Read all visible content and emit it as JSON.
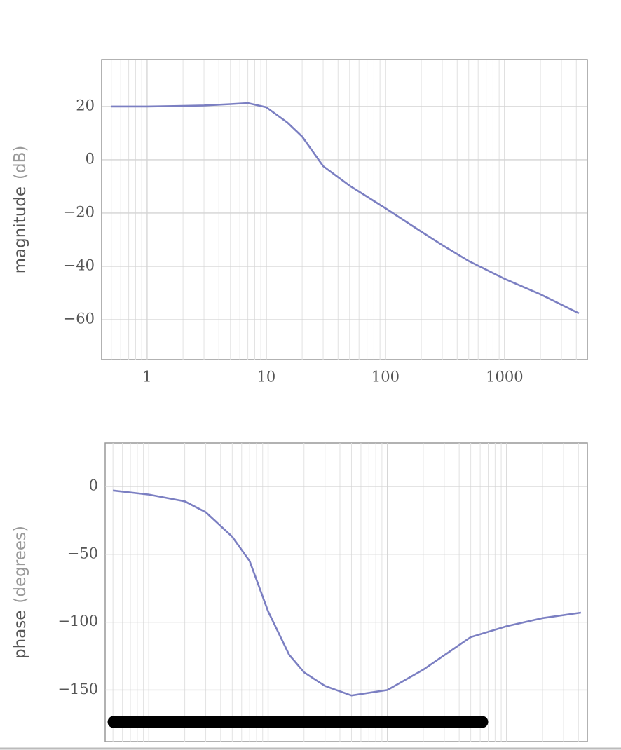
{
  "chart_data": [
    {
      "type": "line",
      "log_x": true,
      "grid": true,
      "ylabel": "magnitude",
      "ylabel_units": "(dB)",
      "xlim": [
        0.415,
        4950
      ],
      "ylim": [
        -75,
        37.6
      ],
      "xticks": [
        1,
        10,
        100,
        1000
      ],
      "show_xtick_labels": true,
      "xminor": [
        0.5,
        0.6,
        0.7,
        0.8,
        0.9,
        2,
        3,
        4,
        5,
        6,
        7,
        8,
        9,
        20,
        30,
        40,
        50,
        60,
        70,
        80,
        90,
        200,
        300,
        400,
        500,
        600,
        700,
        800,
        900,
        2000,
        3000,
        4000
      ],
      "yticks": [
        {
          "value": -60,
          "label": "−60"
        },
        {
          "value": -40,
          "label": "−40"
        },
        {
          "value": -20,
          "label": "−20"
        },
        0,
        20
      ],
      "x": [
        0.5,
        1,
        2,
        3,
        5,
        7,
        10,
        15,
        20,
        30,
        50,
        100,
        200,
        300,
        500,
        1000,
        2000,
        4200
      ],
      "series": [
        {
          "color": "#7b7fc2",
          "values": [
            20,
            20,
            20.2,
            20.4,
            20.9,
            21.3,
            19.7,
            14,
            8.7,
            -2.4,
            -9.7,
            -18.2,
            -27,
            -32,
            -38,
            -44.7,
            -50.5,
            -57.6
          ]
        }
      ]
    },
    {
      "type": "line",
      "log_x": true,
      "grid": true,
      "ylabel": "phase",
      "ylabel_units": "(degrees)",
      "xlim": [
        0.43,
        4750
      ],
      "ylim": [
        -188,
        32
      ],
      "xticks": [
        1,
        10,
        100,
        1000
      ],
      "show_xtick_labels": false,
      "xminor": [
        0.5,
        0.6,
        0.7,
        0.8,
        0.9,
        2,
        3,
        4,
        5,
        6,
        7,
        8,
        9,
        20,
        30,
        40,
        50,
        60,
        70,
        80,
        90,
        200,
        300,
        400,
        500,
        600,
        700,
        800,
        900,
        2000,
        3000,
        4000
      ],
      "yticks": [
        {
          "value": -150,
          "label": "−150"
        },
        {
          "value": -100,
          "label": "−100"
        },
        {
          "value": -50,
          "label": "−50"
        },
        0
      ],
      "x": [
        0.5,
        1,
        2,
        3,
        5,
        7,
        10,
        15,
        20,
        30,
        50,
        100,
        200,
        500,
        1000,
        2000,
        4200
      ],
      "series": [
        {
          "color": "#7b7fc2",
          "values": [
            -3,
            -6,
            -11,
            -19,
            -37,
            -55,
            -92,
            -124,
            -137,
            -147,
            -154,
            -150,
            -135,
            -111,
            -103,
            -97,
            -93
          ]
        }
      ]
    }
  ]
}
